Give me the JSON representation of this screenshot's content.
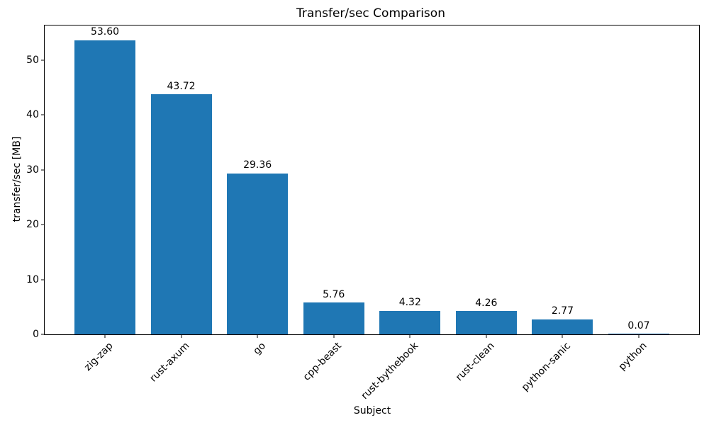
{
  "chart_data": {
    "type": "bar",
    "title": "Transfer/sec Comparison",
    "xlabel": "Subject",
    "ylabel": "transfer/sec [MB]",
    "categories": [
      "zig-zap",
      "rust-axum",
      "go",
      "cpp-beast",
      "rust-bythebook",
      "rust-clean",
      "python-sanic",
      "python"
    ],
    "values": [
      53.6,
      43.72,
      29.36,
      5.76,
      4.32,
      4.26,
      2.77,
      0.07
    ],
    "value_labels": [
      "53.60",
      "43.72",
      "29.36",
      "5.76",
      "4.32",
      "4.26",
      "2.77",
      "0.07"
    ],
    "bar_color": "#1f77b4",
    "yticks": [
      0,
      10,
      20,
      30,
      40,
      50
    ],
    "ylim": [
      0,
      56.28
    ],
    "xlim": [
      -0.79,
      7.79
    ],
    "bar_width": 0.8,
    "grid": false,
    "legend": "none",
    "x_tick_rotation_deg": 45
  }
}
